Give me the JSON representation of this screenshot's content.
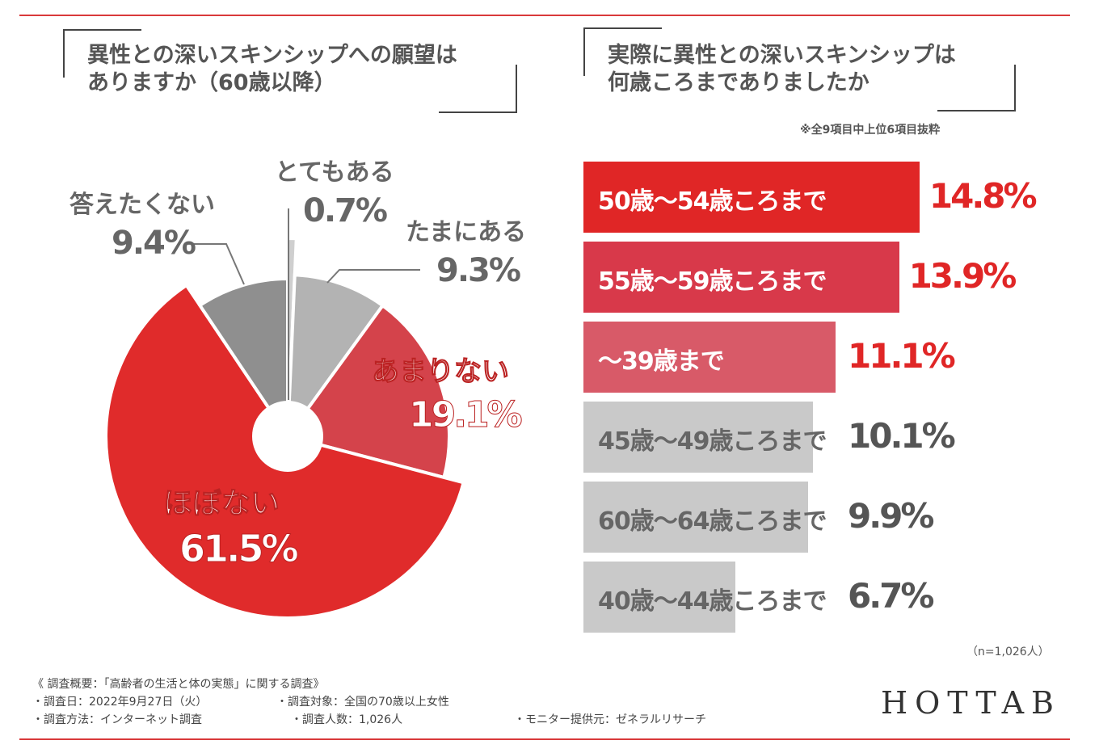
{
  "left_title": "異性との深いスキンシップへの願望は\nありますか（60歳以降）",
  "right_title": "実際に異性との深いスキンシップは\n何歳ころまでありましたか",
  "right_note": "※全9項目中上位6項目抜粋",
  "sample": "（n=1,026人）",
  "brand": "HOTTAB",
  "footer": {
    "heading": "《 調査概要：「高齢者の生活と体の実態」に関する調査》",
    "date": "・調査日：2022年9月27日（火）",
    "target": "・調査対象：全国の70歳以上女性",
    "method": "・調査方法：インターネット調査",
    "count": "・調査人数：1,026人",
    "provider": "・モニター提供元：ゼネラルリサーチ"
  },
  "chart_data": [
    {
      "type": "pie",
      "title": "異性との深いスキンシップへの願望はありますか（60歳以降）",
      "slices": [
        {
          "label": "とてもある",
          "value": 0.7,
          "display": "0.7%",
          "color": "#cfcfcf"
        },
        {
          "label": "たまにある",
          "value": 9.3,
          "display": "9.3%",
          "color": "#b3b3b3"
        },
        {
          "label": "あまりない",
          "value": 19.1,
          "display": "19.1%",
          "color": "#d4434b"
        },
        {
          "label": "ほぼない",
          "value": 61.5,
          "display": "61.5%",
          "color": "#e02b2b"
        },
        {
          "label": "答えたくない",
          "value": 9.4,
          "display": "9.4%",
          "color": "#8f8f8f"
        }
      ]
    },
    {
      "type": "bar",
      "orientation": "horizontal",
      "title": "実際に異性との深いスキンシップは何歳ころまでありましたか",
      "categories": [
        "50歳〜54歳ころまで",
        "55歳〜59歳ころまで",
        "〜39歳まで",
        "45歳〜49歳ころまで",
        "60歳〜64歳ころまで",
        "40歳〜44歳ころまで"
      ],
      "values": [
        14.8,
        13.9,
        11.1,
        10.1,
        9.9,
        6.7
      ],
      "display": [
        "14.8%",
        "13.9%",
        "11.1%",
        "10.1%",
        "9.9%",
        "6.7%"
      ],
      "colors": [
        "#e02626",
        "#d8394a",
        "#d85a68",
        "#c9c9c9",
        "#c9c9c9",
        "#c9c9c9"
      ]
    }
  ]
}
